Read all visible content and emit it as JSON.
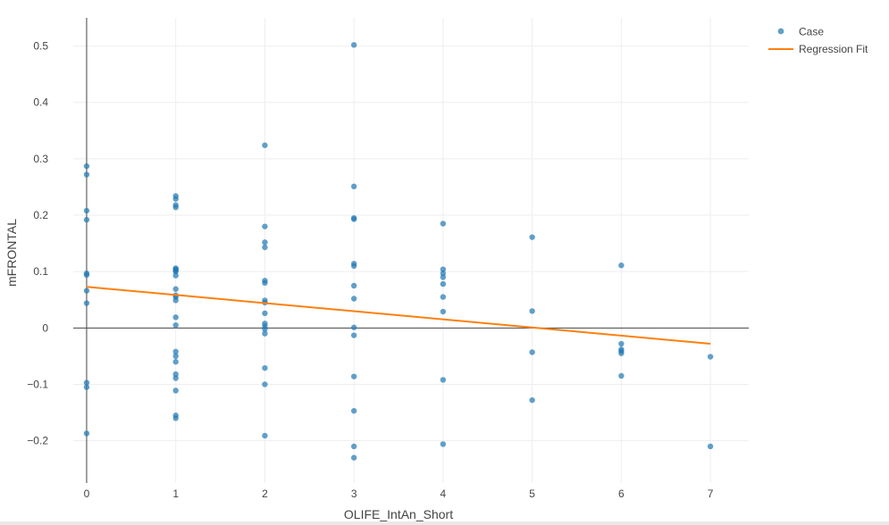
{
  "chart_data": {
    "type": "scatter",
    "xlabel": "OLIFE_IntAn_Short",
    "ylabel": "mFRONTAL",
    "xlim": [
      -0.15,
      7.43
    ],
    "ylim": [
      -0.275,
      0.55
    ],
    "x_ticks": [
      0,
      1,
      2,
      3,
      4,
      5,
      6,
      7
    ],
    "y_ticks": [
      -0.2,
      -0.1,
      0,
      0.1,
      0.2,
      0.3,
      0.4,
      0.5
    ],
    "y_tick_labels": [
      "−0.2",
      "−0.1",
      "0",
      "0.1",
      "0.2",
      "0.3",
      "0.4",
      "0.5"
    ],
    "grid": true,
    "legend_position": "top-right",
    "colors": {
      "case": "#1f77b4",
      "fit": "#ff7f0e",
      "grid": "#eeeeee",
      "zeroline": "#444444"
    },
    "series": [
      {
        "name": "Case",
        "type": "scatter",
        "points": [
          [
            0,
            0.287
          ],
          [
            0,
            0.272
          ],
          [
            0,
            0.208
          ],
          [
            0,
            0.192
          ],
          [
            0,
            0.097
          ],
          [
            0,
            0.094
          ],
          [
            0,
            0.066
          ],
          [
            0,
            0.044
          ],
          [
            0,
            -0.097
          ],
          [
            0,
            -0.105
          ],
          [
            0,
            -0.187
          ],
          [
            1,
            0.234
          ],
          [
            1,
            0.229
          ],
          [
            1,
            0.218
          ],
          [
            1,
            0.214
          ],
          [
            1,
            0.106
          ],
          [
            1,
            0.104
          ],
          [
            1,
            0.102
          ],
          [
            1,
            0.1
          ],
          [
            1,
            0.093
          ],
          [
            1,
            0.069
          ],
          [
            1,
            0.058
          ],
          [
            1,
            0.055
          ],
          [
            1,
            0.049
          ],
          [
            1,
            0.019
          ],
          [
            1,
            0.005
          ],
          [
            1,
            -0.042
          ],
          [
            1,
            -0.05
          ],
          [
            1,
            -0.06
          ],
          [
            1,
            -0.082
          ],
          [
            1,
            -0.089
          ],
          [
            1,
            -0.111
          ],
          [
            1,
            -0.155
          ],
          [
            1,
            -0.16
          ],
          [
            2,
            0.324
          ],
          [
            2,
            0.18
          ],
          [
            2,
            0.152
          ],
          [
            2,
            0.143
          ],
          [
            2,
            0.084
          ],
          [
            2,
            0.08
          ],
          [
            2,
            0.049
          ],
          [
            2,
            0.045
          ],
          [
            2,
            0.026
          ],
          [
            2,
            0.008
          ],
          [
            2,
            0.003
          ],
          [
            2,
            -0.002
          ],
          [
            2,
            -0.01
          ],
          [
            2,
            -0.071
          ],
          [
            2,
            -0.1
          ],
          [
            2,
            -0.191
          ],
          [
            3,
            0.502
          ],
          [
            3,
            0.251
          ],
          [
            3,
            0.195
          ],
          [
            3,
            0.193
          ],
          [
            3,
            0.114
          ],
          [
            3,
            0.11
          ],
          [
            3,
            0.075
          ],
          [
            3,
            0.052
          ],
          [
            3,
            0.001
          ],
          [
            3,
            -0.013
          ],
          [
            3,
            -0.086
          ],
          [
            3,
            -0.147
          ],
          [
            3,
            -0.21
          ],
          [
            3,
            -0.23
          ],
          [
            4,
            0.185
          ],
          [
            4,
            0.104
          ],
          [
            4,
            0.097
          ],
          [
            4,
            0.09
          ],
          [
            4,
            0.078
          ],
          [
            4,
            0.055
          ],
          [
            4,
            0.029
          ],
          [
            4,
            -0.092
          ],
          [
            4,
            -0.206
          ],
          [
            5,
            0.161
          ],
          [
            5,
            0.03
          ],
          [
            5,
            -0.043
          ],
          [
            5,
            -0.128
          ],
          [
            6,
            0.111
          ],
          [
            6,
            -0.028
          ],
          [
            6,
            -0.038
          ],
          [
            6,
            -0.041
          ],
          [
            6,
            -0.045
          ],
          [
            6,
            -0.085
          ],
          [
            7,
            -0.051
          ],
          [
            7,
            -0.21
          ]
        ]
      },
      {
        "name": "Regression Fit",
        "type": "line",
        "points": [
          [
            0,
            0.073
          ],
          [
            7,
            -0.028
          ]
        ]
      }
    ]
  }
}
